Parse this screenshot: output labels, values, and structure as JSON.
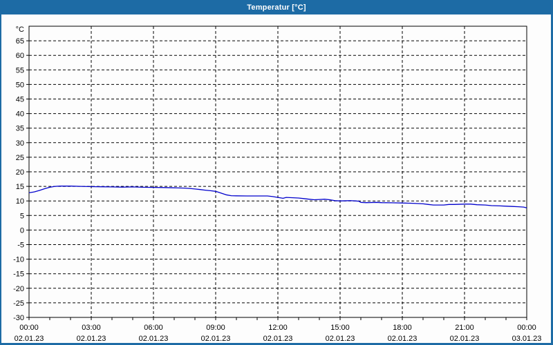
{
  "window": {
    "title": "Temperatur [°C]"
  },
  "colors": {
    "titlebar_bg": "#1d6ba5",
    "window_border": "#1d6ba5",
    "content_bg": "#fdfdfd",
    "title_text": "#ffffff",
    "text": "#000000",
    "frame": "#000000",
    "grid": "#000000",
    "line": "#0000cc"
  },
  "chart_data": {
    "type": "line",
    "title": "Temperatur [°C]",
    "ylabel": "°C",
    "xlabel": "",
    "grid": true,
    "legend_position": "none",
    "ylim": [
      -30,
      70
    ],
    "ytick_step": 5,
    "yticks": [
      65,
      60,
      55,
      50,
      45,
      40,
      35,
      30,
      25,
      20,
      15,
      10,
      5,
      0,
      -5,
      -10,
      -15,
      -20,
      -25,
      -30
    ],
    "xlim_hours": [
      0,
      24
    ],
    "minor_xtick_interval_hours": 1,
    "xticks": [
      {
        "hour": 0,
        "time": "00:00",
        "date": "02.01.23"
      },
      {
        "hour": 3,
        "time": "03:00",
        "date": "02.01.23"
      },
      {
        "hour": 6,
        "time": "06:00",
        "date": "02.01.23"
      },
      {
        "hour": 9,
        "time": "09:00",
        "date": "02.01.23"
      },
      {
        "hour": 12,
        "time": "12:00",
        "date": "02.01.23"
      },
      {
        "hour": 15,
        "time": "15:00",
        "date": "02.01.23"
      },
      {
        "hour": 18,
        "time": "18:00",
        "date": "02.01.23"
      },
      {
        "hour": 21,
        "time": "21:00",
        "date": "02.01.23"
      },
      {
        "hour": 24,
        "time": "00:00",
        "date": "03.01.23"
      }
    ],
    "series": [
      {
        "name": "Temperatur",
        "unit": "°C",
        "points": [
          [
            0,
            12.8
          ],
          [
            0.25,
            13.1
          ],
          [
            0.5,
            13.6
          ],
          [
            0.75,
            14.2
          ],
          [
            1,
            14.7
          ],
          [
            1.25,
            15.0
          ],
          [
            1.5,
            15.1
          ],
          [
            1.75,
            15.1
          ],
          [
            2,
            15.1
          ],
          [
            2.5,
            15.0
          ],
          [
            3,
            14.9
          ],
          [
            3.5,
            14.85
          ],
          [
            4,
            14.8
          ],
          [
            4.5,
            14.75
          ],
          [
            5,
            14.8
          ],
          [
            5.5,
            14.7
          ],
          [
            6,
            14.65
          ],
          [
            6.5,
            14.6
          ],
          [
            7,
            14.5
          ],
          [
            7.5,
            14.4
          ],
          [
            7.75,
            14.3
          ],
          [
            8,
            14.1
          ],
          [
            8.25,
            13.9
          ],
          [
            8.5,
            13.7
          ],
          [
            8.75,
            13.5
          ],
          [
            9,
            13.3
          ],
          [
            9.25,
            12.7
          ],
          [
            9.5,
            12.1
          ],
          [
            9.75,
            11.8
          ],
          [
            10,
            11.75
          ],
          [
            10.5,
            11.7
          ],
          [
            11,
            11.7
          ],
          [
            11.5,
            11.7
          ],
          [
            11.75,
            11.5
          ],
          [
            12,
            11.2
          ],
          [
            12.25,
            10.9
          ],
          [
            12.4,
            11.2
          ],
          [
            12.75,
            11.1
          ],
          [
            13,
            11.0
          ],
          [
            13.25,
            10.8
          ],
          [
            13.5,
            10.6
          ],
          [
            13.75,
            10.4
          ],
          [
            14,
            10.5
          ],
          [
            14.25,
            10.6
          ],
          [
            14.5,
            10.4
          ],
          [
            14.75,
            10.1
          ],
          [
            15,
            10.0
          ],
          [
            15.5,
            10.1
          ],
          [
            15.75,
            10.0
          ],
          [
            15.9,
            9.9
          ],
          [
            16,
            9.5
          ],
          [
            16.25,
            9.4
          ],
          [
            16.75,
            9.5
          ],
          [
            17,
            9.4
          ],
          [
            17.5,
            9.35
          ],
          [
            18,
            9.3
          ],
          [
            18.5,
            9.2
          ],
          [
            19,
            9.0
          ],
          [
            19.25,
            8.8
          ],
          [
            19.5,
            8.6
          ],
          [
            20,
            8.6
          ],
          [
            20.25,
            8.8
          ],
          [
            20.5,
            8.8
          ],
          [
            21,
            8.9
          ],
          [
            21.3,
            8.9
          ],
          [
            21.6,
            8.7
          ],
          [
            22,
            8.6
          ],
          [
            22.3,
            8.4
          ],
          [
            22.7,
            8.3
          ],
          [
            23,
            8.2
          ],
          [
            23.3,
            8.1
          ],
          [
            23.6,
            8.0
          ],
          [
            23.85,
            7.9
          ],
          [
            24,
            7.6
          ]
        ]
      }
    ]
  }
}
